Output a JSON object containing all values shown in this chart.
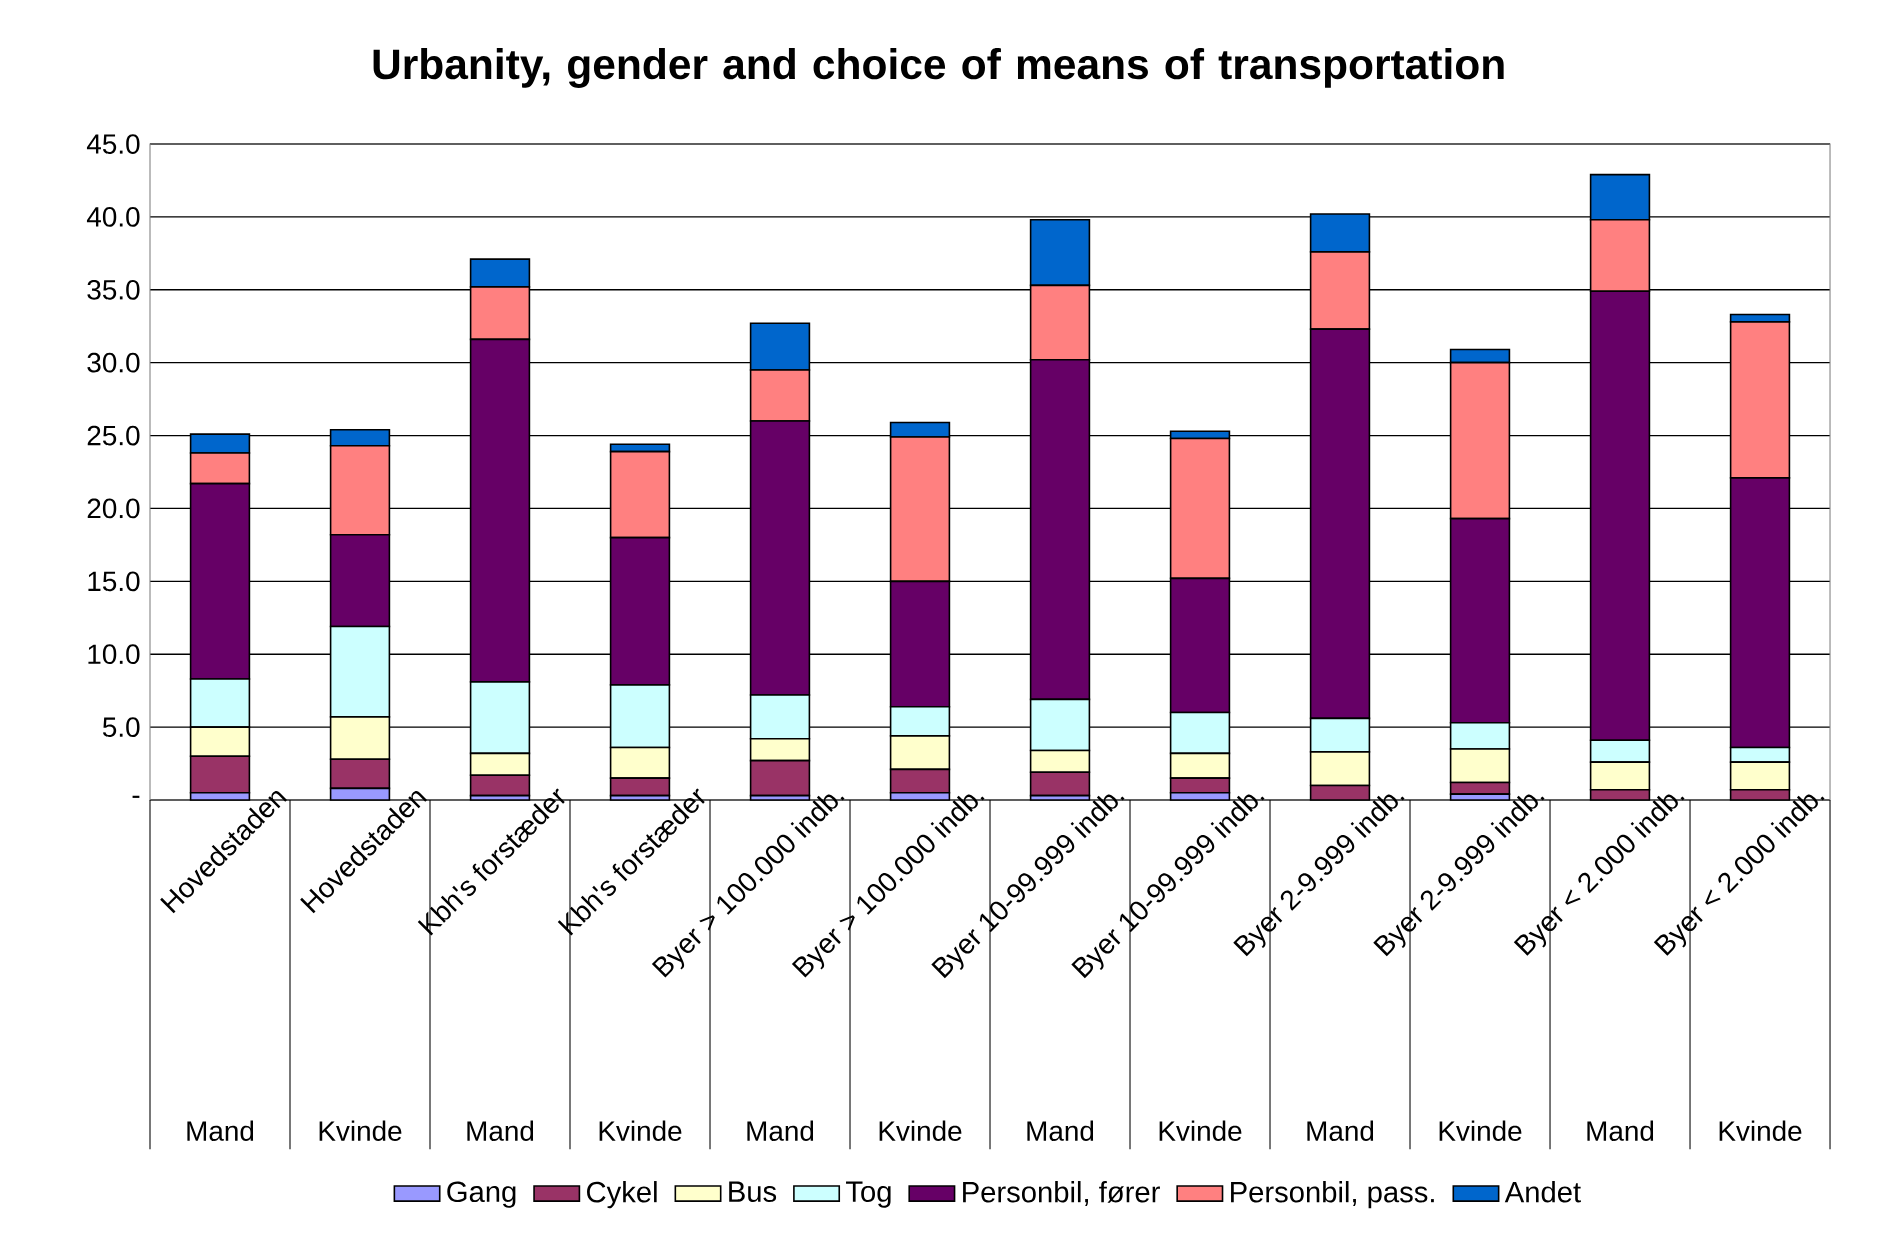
{
  "chart_data": {
    "type": "bar",
    "title": "Urbanity, gender and choice of means of transportation",
    "categories": [
      "Hovedstaden",
      "Hovedstaden",
      "Kbh's forstæder",
      "Kbh's forstæder",
      "Byer > 100.000 indb.",
      "Byer > 100.000 indb.",
      "Byer 10-99.999 indb.",
      "Byer 10-99.999 indb.",
      "Byer 2-9.999 indb.",
      "Byer 2-9.999 indb.",
      "Byer < 2.000 indb.",
      "Byer < 2.000 indb."
    ],
    "annotations": [
      "Mand",
      "Kvinde",
      "Mand",
      "Kvinde",
      "Mand",
      "Kvinde",
      "Mand",
      "Kvinde",
      "Mand",
      "Kvinde",
      "Mand",
      "Kvinde"
    ],
    "stacked": true,
    "series": [
      {
        "name": "Gang",
        "color": "#9999ff",
        "values": [
          0.5,
          0.8,
          0.3,
          0.3,
          0.3,
          0.5,
          0.3,
          0.5,
          null,
          0.4,
          null,
          null
        ]
      },
      {
        "name": "Cykel",
        "color": "#993366",
        "values": [
          2.5,
          2.0,
          1.4,
          1.2,
          2.4,
          1.6,
          1.6,
          1.0,
          1.0,
          0.8,
          0.7,
          0.7
        ]
      },
      {
        "name": "Bus",
        "color": "#ffffcc",
        "values": [
          2.0,
          2.9,
          1.5,
          2.1,
          1.5,
          2.3,
          1.5,
          1.7,
          2.3,
          2.3,
          1.9,
          1.9
        ]
      },
      {
        "name": "Tog",
        "color": "#ccffff",
        "values": [
          3.3,
          6.2,
          4.9,
          4.3,
          3.0,
          2.0,
          3.5,
          2.8,
          2.3,
          1.8,
          1.5,
          1.0
        ]
      },
      {
        "name": "Personbil, fører",
        "color": "#660066",
        "values": [
          13.4,
          6.3,
          23.5,
          10.1,
          18.8,
          8.6,
          23.3,
          9.2,
          26.7,
          14.0,
          30.8,
          18.5
        ]
      },
      {
        "name": "Personbil, pass.",
        "color": "#ff8080",
        "values": [
          2.1,
          6.1,
          3.6,
          5.9,
          3.5,
          9.9,
          5.1,
          9.6,
          5.3,
          10.7,
          4.9,
          10.7
        ]
      },
      {
        "name": "Andet",
        "color": "#0066cc",
        "values": [
          1.3,
          1.1,
          1.9,
          0.5,
          3.2,
          1.0,
          4.5,
          0.5,
          2.6,
          0.9,
          3.1,
          0.5
        ]
      }
    ],
    "ylim": [
      0,
      45
    ],
    "yticks": [
      {
        "value": 0,
        "label": "-"
      },
      {
        "value": 5,
        "label": "5.0"
      },
      {
        "value": 10,
        "label": "10.0"
      },
      {
        "value": 15,
        "label": "15.0"
      },
      {
        "value": 20,
        "label": "20.0"
      },
      {
        "value": 25,
        "label": "25.0"
      },
      {
        "value": 30,
        "label": "30.0"
      },
      {
        "value": 35,
        "label": "35.0"
      },
      {
        "value": 40,
        "label": "40.0"
      },
      {
        "value": 45,
        "label": "45.0"
      }
    ],
    "grid": "y",
    "legend": "bottom"
  }
}
